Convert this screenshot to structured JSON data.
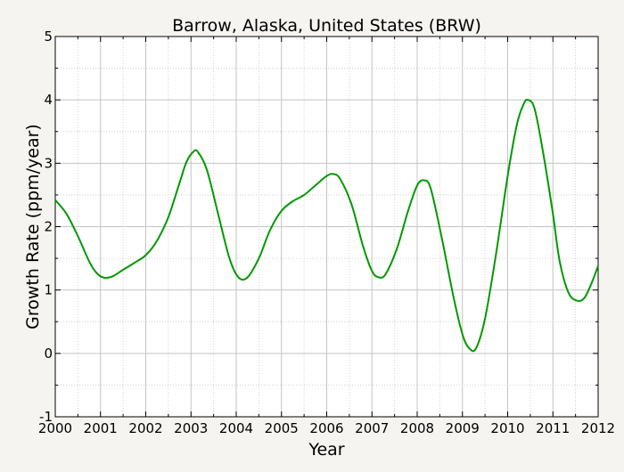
{
  "chart_data": {
    "type": "line",
    "title": "Barrow, Alaska, United States (BRW)",
    "xlabel": "Year",
    "ylabel": "Growth Rate (ppm/year)",
    "xlim": [
      2000,
      2012
    ],
    "ylim": [
      -1,
      5
    ],
    "x_ticks": [
      "2000",
      "2001",
      "2002",
      "2003",
      "2004",
      "2005",
      "2006",
      "2007",
      "2008",
      "2009",
      "2010",
      "2011",
      "2012"
    ],
    "y_ticks": [
      "-1",
      "0",
      "1",
      "2",
      "3",
      "4",
      "5"
    ],
    "grid": true,
    "colors": {
      "line": "#009900",
      "plot_background": "#ffffff",
      "page_background": "#f5f4f0"
    },
    "series": [
      {
        "points": [
          [
            2000.0,
            2.42
          ],
          [
            2000.25,
            2.2
          ],
          [
            2000.5,
            1.85
          ],
          [
            2000.75,
            1.45
          ],
          [
            2000.9,
            1.28
          ],
          [
            2001.05,
            1.2
          ],
          [
            2001.25,
            1.21
          ],
          [
            2001.5,
            1.32
          ],
          [
            2001.75,
            1.43
          ],
          [
            2002.0,
            1.55
          ],
          [
            2002.25,
            1.78
          ],
          [
            2002.5,
            2.15
          ],
          [
            2002.75,
            2.7
          ],
          [
            2002.9,
            3.02
          ],
          [
            2003.05,
            3.18
          ],
          [
            2003.15,
            3.18
          ],
          [
            2003.35,
            2.9
          ],
          [
            2003.6,
            2.2
          ],
          [
            2003.85,
            1.5
          ],
          [
            2004.05,
            1.2
          ],
          [
            2004.25,
            1.2
          ],
          [
            2004.5,
            1.5
          ],
          [
            2004.75,
            1.95
          ],
          [
            2005.0,
            2.25
          ],
          [
            2005.25,
            2.4
          ],
          [
            2005.5,
            2.5
          ],
          [
            2005.75,
            2.65
          ],
          [
            2006.0,
            2.8
          ],
          [
            2006.15,
            2.83
          ],
          [
            2006.3,
            2.75
          ],
          [
            2006.55,
            2.35
          ],
          [
            2006.8,
            1.7
          ],
          [
            2007.0,
            1.3
          ],
          [
            2007.15,
            1.2
          ],
          [
            2007.3,
            1.25
          ],
          [
            2007.55,
            1.65
          ],
          [
            2007.8,
            2.25
          ],
          [
            2008.0,
            2.65
          ],
          [
            2008.15,
            2.73
          ],
          [
            2008.3,
            2.6
          ],
          [
            2008.55,
            1.8
          ],
          [
            2008.8,
            0.9
          ],
          [
            2009.0,
            0.3
          ],
          [
            2009.15,
            0.08
          ],
          [
            2009.3,
            0.08
          ],
          [
            2009.5,
            0.55
          ],
          [
            2009.75,
            1.6
          ],
          [
            2010.0,
            2.8
          ],
          [
            2010.2,
            3.6
          ],
          [
            2010.35,
            3.93
          ],
          [
            2010.45,
            4.0
          ],
          [
            2010.6,
            3.85
          ],
          [
            2010.8,
            3.1
          ],
          [
            2011.0,
            2.2
          ],
          [
            2011.15,
            1.45
          ],
          [
            2011.35,
            0.95
          ],
          [
            2011.55,
            0.83
          ],
          [
            2011.7,
            0.88
          ],
          [
            2011.85,
            1.1
          ],
          [
            2012.0,
            1.38
          ]
        ]
      }
    ]
  }
}
